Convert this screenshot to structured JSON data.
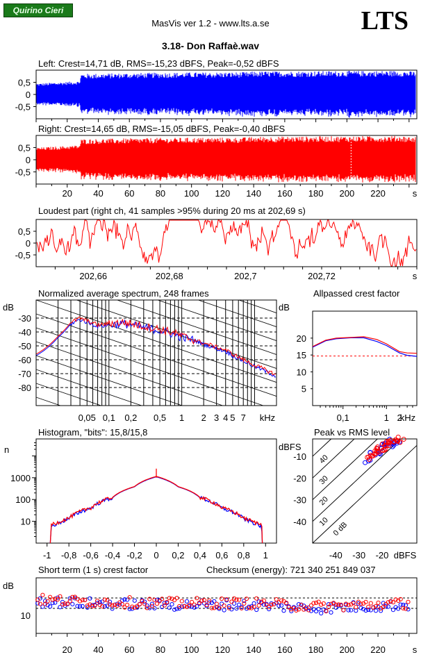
{
  "header": {
    "badge": "Quirino Cieri",
    "title": "MasVis ver 1.2 - www.lts.a.se",
    "logo": "LTS",
    "file": "3.18- Don Raffaè.wav"
  },
  "colors": {
    "left": "#0000ff",
    "right": "#ff0000",
    "grid": "#000000"
  },
  "chart_data": [
    {
      "type": "area",
      "title": "Left: Crest=14,71 dB, RMS=-15,23 dBFS, Peak=-0,52 dBFS",
      "yticks": [
        "0,5",
        "0",
        "-0,5"
      ],
      "ylim": [
        -1,
        1
      ],
      "xlim": [
        0,
        245
      ],
      "series": [
        {
          "name": "Left",
          "color": "#0000ff",
          "envelope": [
            [
              0,
              0.45
            ],
            [
              28,
              0.55
            ],
            [
              29,
              0.85
            ],
            [
              80,
              0.9
            ],
            [
              135,
              0.92
            ],
            [
              140,
              0.95
            ],
            [
              200,
              0.97
            ],
            [
              236,
              0.98
            ],
            [
              240,
              0.95
            ]
          ]
        }
      ]
    },
    {
      "type": "area",
      "title": "Right: Crest=14,65 dB, RMS=-15,05 dBFS, Peak=-0,40 dBFS",
      "yticks": [
        "0,5",
        "0",
        "-0,5"
      ],
      "ylim": [
        -1,
        1
      ],
      "xticks": [
        "20",
        "40",
        "60",
        "80",
        "100",
        "120",
        "140",
        "160",
        "180",
        "200",
        "220",
        "s"
      ],
      "xlim": [
        0,
        245
      ],
      "series": [
        {
          "name": "Right",
          "color": "#ff0000",
          "envelope": [
            [
              0,
              0.5
            ],
            [
              28,
              0.6
            ],
            [
              29,
              0.85
            ],
            [
              80,
              0.9
            ],
            [
              135,
              0.92
            ],
            [
              140,
              0.95
            ],
            [
              200,
              0.97
            ],
            [
              236,
              0.98
            ],
            [
              240,
              0.95
            ]
          ]
        }
      ]
    },
    {
      "type": "line",
      "title": "Loudest part (right ch, 41 samples >95% during 20 ms at 202,69 s)",
      "yticks": [
        "0,5",
        "0",
        "-0,5"
      ],
      "ylim": [
        -1,
        1
      ],
      "xticks": [
        "202,66",
        "202,68",
        "202,7",
        "202,72",
        "s"
      ],
      "xlim": [
        202.645,
        202.745
      ],
      "series": [
        {
          "name": "Right",
          "color": "#ff0000"
        }
      ]
    },
    {
      "type": "line",
      "title": "Normalized average spectrum, 248 frames",
      "ylabel": "dB",
      "yticks": [
        "-30",
        "-40",
        "-50",
        "-60",
        "-70",
        "-80"
      ],
      "ylim": [
        -93,
        -17
      ],
      "xticks": [
        "0,05",
        "0,1",
        "0,2",
        "0,5",
        "1",
        "2",
        "3",
        "4",
        "5",
        "7",
        "kHz"
      ],
      "xlim": [
        0.01,
        20
      ],
      "series": [
        {
          "name": "Left",
          "color": "#0000ff",
          "points": [
            [
              0.01,
              -57
            ],
            [
              0.02,
              -44
            ],
            [
              0.03,
              -34
            ],
            [
              0.04,
              -31
            ],
            [
              0.05,
              -33
            ],
            [
              0.07,
              -36
            ],
            [
              0.1,
              -35
            ],
            [
              0.15,
              -34
            ],
            [
              0.2,
              -35
            ],
            [
              0.3,
              -37
            ],
            [
              0.5,
              -39
            ],
            [
              0.7,
              -41
            ],
            [
              1,
              -44
            ],
            [
              1.5,
              -46
            ],
            [
              2,
              -49
            ],
            [
              3,
              -52
            ],
            [
              4,
              -54
            ],
            [
              5,
              -57
            ],
            [
              7,
              -61
            ],
            [
              10,
              -65
            ],
            [
              15,
              -69
            ],
            [
              20,
              -72
            ]
          ]
        },
        {
          "name": "Right",
          "color": "#ff0000",
          "points": [
            [
              0.01,
              -56
            ],
            [
              0.02,
              -43
            ],
            [
              0.03,
              -33
            ],
            [
              0.04,
              -30
            ],
            [
              0.05,
              -32
            ],
            [
              0.07,
              -35
            ],
            [
              0.1,
              -34
            ],
            [
              0.15,
              -33
            ],
            [
              0.2,
              -34
            ],
            [
              0.3,
              -36
            ],
            [
              0.5,
              -38
            ],
            [
              0.7,
              -40
            ],
            [
              1,
              -43
            ],
            [
              1.5,
              -46
            ],
            [
              2,
              -48
            ],
            [
              3,
              -51
            ],
            [
              4,
              -53
            ],
            [
              5,
              -56
            ],
            [
              7,
              -60
            ],
            [
              10,
              -64
            ],
            [
              15,
              -68
            ],
            [
              20,
              -71
            ]
          ]
        }
      ]
    },
    {
      "type": "line",
      "title": "Allpassed crest factor",
      "ylabel": "dB",
      "yticks": [
        "20",
        "15",
        "10",
        "5"
      ],
      "ylim": [
        0,
        28
      ],
      "xticks": [
        "0,1",
        "1",
        "2",
        "kHz"
      ],
      "xlim": [
        0.02,
        5
      ],
      "reference": 14.7,
      "series": [
        {
          "name": "Left",
          "color": "#0000ff",
          "points": [
            [
              0.02,
              17.3
            ],
            [
              0.04,
              19.2
            ],
            [
              0.07,
              19.8
            ],
            [
              0.15,
              20.1
            ],
            [
              0.3,
              20.1
            ],
            [
              0.6,
              19.0
            ],
            [
              1,
              17.8
            ],
            [
              2,
              15.6
            ],
            [
              3,
              14.9
            ],
            [
              5,
              14.6
            ]
          ]
        },
        {
          "name": "Right",
          "color": "#ff0000",
          "points": [
            [
              0.02,
              17.5
            ],
            [
              0.04,
              19.4
            ],
            [
              0.07,
              20.0
            ],
            [
              0.15,
              20.2
            ],
            [
              0.3,
              20.4
            ],
            [
              0.6,
              19.6
            ],
            [
              1,
              18.3
            ],
            [
              2,
              16.0
            ],
            [
              3,
              15.6
            ],
            [
              5,
              15.5
            ]
          ]
        }
      ]
    },
    {
      "type": "line",
      "title": "Histogram, \"bits\": 15,8/15,8",
      "ylabel": "n",
      "yticks": [
        "1000",
        "100",
        "10"
      ],
      "ylim": [
        1,
        60000
      ],
      "xticks": [
        "-1",
        "-0,8",
        "-0,6",
        "-0,4",
        "-0,2",
        "0",
        "0,2",
        "0,4",
        "0,6",
        "0,8",
        "1"
      ],
      "xlim": [
        -1.1,
        1.1
      ],
      "series": [
        {
          "name": "Left",
          "color": "#0000ff",
          "points": [
            [
              -0.97,
              1
            ],
            [
              -0.96,
              6
            ],
            [
              -0.9,
              8
            ],
            [
              -0.8,
              13
            ],
            [
              -0.6,
              40
            ],
            [
              -0.4,
              120
            ],
            [
              -0.2,
              380
            ],
            [
              0,
              1100
            ],
            [
              0.2,
              380
            ],
            [
              0.4,
              120
            ],
            [
              0.6,
              40
            ],
            [
              0.8,
              13
            ],
            [
              0.9,
              8
            ],
            [
              0.96,
              6
            ],
            [
              0.97,
              1
            ]
          ]
        },
        {
          "name": "Right",
          "color": "#ff0000",
          "points": [
            [
              -0.97,
              1
            ],
            [
              -0.97,
              7
            ],
            [
              -0.9,
              9
            ],
            [
              -0.8,
              14
            ],
            [
              -0.6,
              42
            ],
            [
              -0.4,
              125
            ],
            [
              -0.2,
              390
            ],
            [
              0,
              1150
            ],
            [
              0.2,
              390
            ],
            [
              0.4,
              125
            ],
            [
              0.6,
              42
            ],
            [
              0.8,
              14
            ],
            [
              0.9,
              9
            ],
            [
              0.97,
              7
            ],
            [
              0.97,
              1
            ]
          ]
        }
      ],
      "spike": {
        "x": 0,
        "y": 2600
      }
    },
    {
      "type": "scatter",
      "title": "Peak vs RMS level",
      "ylabel": "dBFS",
      "xlabel": "dBFS",
      "yticks": [
        "-10",
        "-20",
        "-30",
        "-40"
      ],
      "ylim": [
        -50,
        -2
      ],
      "xticks": [
        "-40",
        "-30",
        "-20"
      ],
      "xlim": [
        -50,
        -5
      ],
      "diagonals": [
        "40",
        "30",
        "20",
        "10",
        "0 dB"
      ],
      "series": [
        {
          "name": "Left",
          "color": "#0000ff",
          "points": [
            [
              -26,
              -12
            ],
            [
              -24,
              -9
            ],
            [
              -22,
              -7
            ],
            [
              -20,
              -5
            ],
            [
              -18,
              -4
            ],
            [
              -16,
              -3
            ],
            [
              -19,
              -6
            ],
            [
              -17,
              -5
            ],
            [
              -15,
              -4
            ],
            [
              -21,
              -8
            ],
            [
              -14,
              -3
            ]
          ]
        },
        {
          "name": "Right",
          "color": "#ff0000",
          "points": [
            [
              -26,
              -11
            ],
            [
              -25,
              -10
            ],
            [
              -23,
              -8
            ],
            [
              -21,
              -6
            ],
            [
              -19,
              -5
            ],
            [
              -17,
              -4
            ],
            [
              -15,
              -3
            ],
            [
              -18,
              -6
            ],
            [
              -16,
              -4
            ],
            [
              -20,
              -7
            ],
            [
              -22,
              -9
            ],
            [
              -13,
              -3
            ],
            [
              -12,
              -2
            ]
          ]
        }
      ]
    },
    {
      "type": "scatter",
      "title": "Short term (1 s) crest factor",
      "ylabel": "dB",
      "yticks": [
        "10"
      ],
      "ylim": [
        0,
        30
      ],
      "xticks": [
        "20",
        "40",
        "60",
        "80",
        "100",
        "120",
        "140",
        "160",
        "180",
        "200",
        "220",
        "s"
      ],
      "xlim": [
        0,
        245
      ],
      "refs": [
        15,
        12
      ],
      "checksum": "Checksum (energy):   721 340 251 849 037",
      "series": [
        {
          "name": "Left",
          "color": "#0000ff",
          "level": [
            [
              0,
              14
            ],
            [
              30,
              13.5
            ],
            [
              80,
              13
            ],
            [
              140,
              13
            ],
            [
              180,
              12
            ],
            [
              210,
              12.5
            ],
            [
              245,
              13
            ]
          ]
        },
        {
          "name": "Right",
          "color": "#ff0000",
          "level": [
            [
              0,
              14.5
            ],
            [
              30,
              14
            ],
            [
              80,
              13.5
            ],
            [
              140,
              13.5
            ],
            [
              180,
              12.5
            ],
            [
              210,
              13
            ],
            [
              245,
              13.5
            ]
          ]
        }
      ]
    }
  ]
}
